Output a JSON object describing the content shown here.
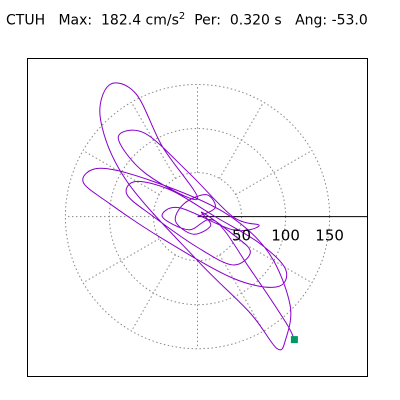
{
  "chart_data": {
    "type": "orbit",
    "station": "CTUH",
    "max_label": "Max:  182.4 cm/s",
    "max_sup": "2",
    "period_label": "Per:  0.320 s",
    "angle_label": "Ang: -53.0",
    "xlim": [
      -193,
      193
    ],
    "ylim": [
      -182,
      180
    ],
    "rticks": [
      50,
      100,
      150
    ],
    "color": "#8800cc",
    "end_color": "#009966",
    "x": [
      0,
      20,
      10,
      -15,
      -25,
      -5,
      15,
      5,
      40,
      60,
      40,
      0,
      -50,
      -80,
      -70,
      -30,
      20,
      70,
      100,
      90,
      40,
      -40,
      -100,
      -130,
      -110,
      -50,
      30,
      80,
      105,
      100,
      90,
      60,
      0,
      -80,
      -110,
      -100,
      -70,
      -40,
      0,
      -60,
      -90,
      -60,
      -10,
      40,
      70,
      40,
      -20,
      -40,
      -10,
      20,
      60,
      100,
      110
    ],
    "y": [
      0,
      10,
      25,
      15,
      -5,
      -20,
      -10,
      5,
      -20,
      -40,
      -55,
      -35,
      0,
      25,
      40,
      30,
      0,
      -30,
      -60,
      -80,
      -70,
      -25,
      15,
      40,
      55,
      40,
      5,
      -40,
      -100,
      -140,
      -150,
      -110,
      -50,
      40,
      110,
      150,
      140,
      80,
      20,
      50,
      90,
      95,
      50,
      0,
      -10,
      -15,
      10,
      0,
      -15,
      -5,
      -60,
      -120,
      -140
    ]
  }
}
